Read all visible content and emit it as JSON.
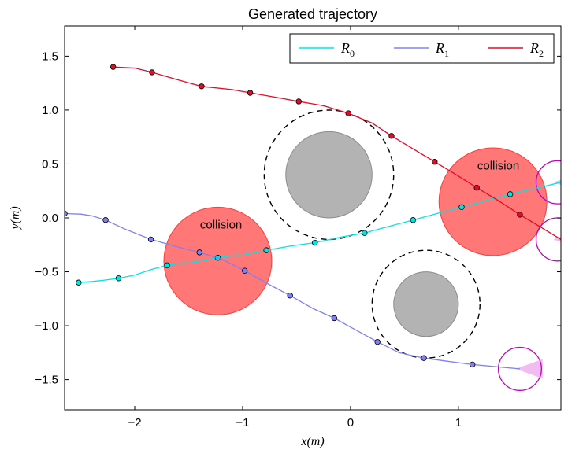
{
  "chart_data": {
    "type": "line",
    "title": "Generated trajectory",
    "xlabel": "x(m)",
    "ylabel": "y(m)",
    "xlim": [
      -2.65,
      1.95
    ],
    "ylim": [
      -1.78,
      1.78
    ],
    "xticks": [
      -2,
      -1,
      0,
      1
    ],
    "yticks": [
      -1.5,
      -1.0,
      -0.5,
      0.0,
      0.5,
      1.0,
      1.5
    ],
    "xtick_labels": [
      "−2",
      "−1",
      "0",
      "1"
    ],
    "ytick_labels": [
      "−1.5",
      "−1.0",
      "−0.5",
      "0.0",
      "0.5",
      "1.0",
      "1.5"
    ],
    "grid": false,
    "legend_position": "top-right",
    "series": [
      {
        "name": "R",
        "subscript": "0",
        "color": "#00e5e5",
        "line": [
          [
            -2.52,
            -0.6
          ],
          [
            -2.4,
            -0.59
          ],
          [
            -2.3,
            -0.58
          ],
          [
            -2.15,
            -0.56
          ],
          [
            -2.0,
            -0.53
          ],
          [
            -1.85,
            -0.48
          ],
          [
            -1.7,
            -0.44
          ],
          [
            -1.55,
            -0.42
          ],
          [
            -1.4,
            -0.4
          ],
          [
            -1.23,
            -0.37
          ],
          [
            -1.0,
            -0.34
          ],
          [
            -0.78,
            -0.3
          ],
          [
            -0.55,
            -0.26
          ],
          [
            -0.33,
            -0.23
          ],
          [
            -0.1,
            -0.18
          ],
          [
            0.13,
            -0.14
          ],
          [
            0.35,
            -0.08
          ],
          [
            0.58,
            -0.02
          ],
          [
            0.8,
            0.04
          ],
          [
            1.03,
            0.1
          ],
          [
            1.25,
            0.16
          ],
          [
            1.48,
            0.22
          ],
          [
            1.7,
            0.27
          ],
          [
            1.95,
            0.33
          ]
        ],
        "markers": [
          [
            -2.52,
            -0.6
          ],
          [
            -2.15,
            -0.56
          ],
          [
            -1.7,
            -0.44
          ],
          [
            -1.23,
            -0.37
          ],
          [
            -0.78,
            -0.3
          ],
          [
            -0.33,
            -0.23
          ],
          [
            0.13,
            -0.14
          ],
          [
            0.58,
            -0.02
          ],
          [
            1.03,
            0.1
          ],
          [
            1.48,
            0.22
          ]
        ]
      },
      {
        "name": "R",
        "subscript": "1",
        "color": "#8080f0",
        "line": [
          [
            -2.65,
            0.04
          ],
          [
            -2.5,
            0.035
          ],
          [
            -2.4,
            0.02
          ],
          [
            -2.27,
            -0.02
          ],
          [
            -2.1,
            -0.1
          ],
          [
            -1.85,
            -0.2
          ],
          [
            -1.6,
            -0.27
          ],
          [
            -1.4,
            -0.32
          ],
          [
            -1.2,
            -0.38
          ],
          [
            -0.98,
            -0.49
          ],
          [
            -0.75,
            -0.62
          ],
          [
            -0.56,
            -0.72
          ],
          [
            -0.35,
            -0.84
          ],
          [
            -0.15,
            -0.93
          ],
          [
            0.05,
            -1.04
          ],
          [
            0.25,
            -1.15
          ],
          [
            0.45,
            -1.25
          ],
          [
            0.68,
            -1.3
          ],
          [
            0.9,
            -1.33
          ],
          [
            1.13,
            -1.36
          ],
          [
            1.35,
            -1.38
          ],
          [
            1.57,
            -1.4
          ]
        ],
        "markers": [
          [
            -2.65,
            0.04
          ],
          [
            -2.27,
            -0.02
          ],
          [
            -1.85,
            -0.2
          ],
          [
            -1.4,
            -0.32
          ],
          [
            -0.98,
            -0.49
          ],
          [
            -0.56,
            -0.72
          ],
          [
            -0.15,
            -0.93
          ],
          [
            0.25,
            -1.15
          ],
          [
            0.68,
            -1.3
          ],
          [
            1.13,
            -1.36
          ]
        ]
      },
      {
        "name": "R",
        "subscript": "2",
        "color": "#e60a28",
        "line": [
          [
            -2.2,
            1.4
          ],
          [
            -2.0,
            1.39
          ],
          [
            -1.84,
            1.35
          ],
          [
            -1.6,
            1.28
          ],
          [
            -1.38,
            1.22
          ],
          [
            -1.1,
            1.19
          ],
          [
            -0.93,
            1.16
          ],
          [
            -0.7,
            1.12
          ],
          [
            -0.48,
            1.08
          ],
          [
            -0.25,
            1.04
          ],
          [
            -0.02,
            0.97
          ],
          [
            0.2,
            0.88
          ],
          [
            0.38,
            0.76
          ],
          [
            0.58,
            0.64
          ],
          [
            0.78,
            0.52
          ],
          [
            0.98,
            0.4
          ],
          [
            1.17,
            0.28
          ],
          [
            1.37,
            0.16
          ],
          [
            1.57,
            0.03
          ],
          [
            1.77,
            -0.09
          ],
          [
            1.95,
            -0.2
          ]
        ],
        "markers": [
          [
            -2.2,
            1.4
          ],
          [
            -1.84,
            1.35
          ],
          [
            -1.38,
            1.22
          ],
          [
            -0.93,
            1.16
          ],
          [
            -0.48,
            1.08
          ],
          [
            -0.02,
            0.97
          ],
          [
            0.38,
            0.76
          ],
          [
            0.78,
            0.52
          ],
          [
            1.17,
            0.28
          ],
          [
            1.57,
            0.03
          ]
        ]
      }
    ],
    "obstacles": [
      {
        "cx": -0.2,
        "cy": 0.4,
        "r": 0.4,
        "safety_r": 0.6
      },
      {
        "cx": 0.7,
        "cy": -0.8,
        "r": 0.3,
        "safety_r": 0.5
      }
    ],
    "collisions": [
      {
        "cx": -1.23,
        "cy": -0.4,
        "r": 0.5,
        "label": "collision",
        "label_x": -1.2,
        "label_y": -0.1
      },
      {
        "cx": 1.32,
        "cy": 0.15,
        "r": 0.5,
        "label": "collision",
        "label_x": 1.37,
        "label_y": 0.45
      }
    ],
    "robots": [
      {
        "cx": 1.57,
        "cy": -1.4,
        "r": 0.2,
        "heading": [
          1.57,
          -1.4
        ]
      },
      {
        "cx": 1.92,
        "cy": 0.33,
        "r": 0.2,
        "heading": [
          1.95,
          0.33
        ]
      },
      {
        "cx": 1.92,
        "cy": -0.2,
        "r": 0.2,
        "heading": [
          1.95,
          -0.2
        ]
      }
    ],
    "colors": {
      "obstacle_fill": "#b3b3b3",
      "obstacle_edge": "#8c8c8c",
      "collision_fill": "#ff7070",
      "collision_edge": "#ff3a3a",
      "robot_edge": "#bf00bf",
      "robot_fov": "#f0b0ee"
    }
  }
}
